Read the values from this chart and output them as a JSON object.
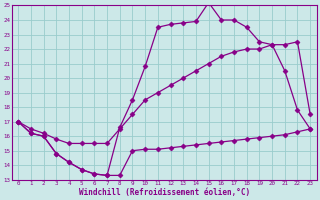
{
  "xlabel": "Windchill (Refroidissement éolien,°C)",
  "bg_color": "#cce8e8",
  "grid_color": "#99cccc",
  "line_color": "#880088",
  "xlim": [
    -0.5,
    23.5
  ],
  "ylim": [
    13,
    25
  ],
  "yticks": [
    13,
    14,
    15,
    16,
    17,
    18,
    19,
    20,
    21,
    22,
    23,
    24,
    25
  ],
  "xticks": [
    0,
    1,
    2,
    3,
    4,
    5,
    6,
    7,
    8,
    9,
    10,
    11,
    12,
    13,
    14,
    15,
    16,
    17,
    18,
    19,
    20,
    21,
    22,
    23
  ],
  "series": [
    {
      "x": [
        0,
        1,
        2,
        3,
        4,
        5,
        6,
        7,
        8,
        9,
        10,
        11,
        12,
        13,
        14,
        15,
        16,
        17,
        18,
        19,
        20,
        21,
        22,
        23
      ],
      "y": [
        17.0,
        16.2,
        16.0,
        14.8,
        14.2,
        13.7,
        13.4,
        13.3,
        13.3,
        15.0,
        15.1,
        15.1,
        15.2,
        15.3,
        15.4,
        15.5,
        15.6,
        15.7,
        15.8,
        15.9,
        16.0,
        16.1,
        16.3,
        16.5
      ]
    },
    {
      "x": [
        0,
        1,
        2,
        3,
        4,
        5,
        6,
        7,
        8,
        9,
        10,
        11,
        12,
        13,
        14,
        15,
        16,
        17,
        18,
        19,
        20,
        21,
        22,
        23
      ],
      "y": [
        17.0,
        16.5,
        16.2,
        15.8,
        15.5,
        15.5,
        15.5,
        15.5,
        16.5,
        17.5,
        18.5,
        19.0,
        19.5,
        20.0,
        20.5,
        21.0,
        21.5,
        21.8,
        22.0,
        22.0,
        22.3,
        22.3,
        22.5,
        17.5
      ]
    },
    {
      "x": [
        0,
        1,
        2,
        3,
        4,
        5,
        6,
        7,
        8,
        9,
        10,
        11,
        12,
        13,
        14,
        15,
        16,
        17,
        18,
        19,
        20,
        21,
        22,
        23
      ],
      "y": [
        17.0,
        16.2,
        16.0,
        14.8,
        14.2,
        13.7,
        13.4,
        13.3,
        16.6,
        18.5,
        20.8,
        23.5,
        23.7,
        23.8,
        23.9,
        25.2,
        24.0,
        24.0,
        23.5,
        22.5,
        22.3,
        20.5,
        17.8,
        16.5
      ]
    }
  ]
}
